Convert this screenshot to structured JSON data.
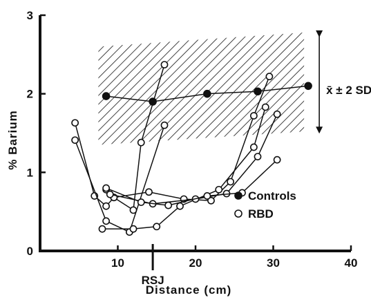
{
  "chart_data": {
    "type": "line",
    "xlabel": "Distance (cm)",
    "ylabel": "% Barium",
    "xlim": [
      0,
      40
    ],
    "ylim": [
      0,
      3
    ],
    "xticks": [
      "10",
      "20",
      "30",
      "40"
    ],
    "yticks": [
      "0",
      "1",
      "2",
      "3"
    ],
    "grid": false,
    "legend_placement": "bottom-right",
    "legend": [
      {
        "label": "Controls",
        "marker": "filled-circle"
      },
      {
        "label": "RBD",
        "marker": "open-circle"
      }
    ],
    "annotations": {
      "rsj_label": "RSJ",
      "rsj_x": 14.5,
      "band_label": "x̄ ± 2 SD"
    },
    "band": {
      "x_range": [
        7.5,
        34.5
      ],
      "lower_start": 1.35,
      "lower_end": 1.52,
      "upper_start": 2.6,
      "upper_end": 2.78,
      "arrow_x": 34.5
    },
    "series": [
      {
        "name": "Controls",
        "marker": "filled",
        "x": [
          8.5,
          14.5,
          21.5,
          28,
          34.5
        ],
        "y": [
          1.97,
          1.9,
          2.0,
          2.03,
          2.1
        ]
      },
      {
        "marker": "open",
        "x": [
          4.5,
          7,
          8.5,
          9.5,
          12,
          13,
          16
        ],
        "y": [
          1.63,
          0.7,
          0.57,
          0.68,
          0.52,
          1.38,
          2.37
        ]
      },
      {
        "marker": "open",
        "x": [
          4.5,
          8.5,
          11.5,
          16
        ],
        "y": [
          1.41,
          0.38,
          0.24,
          1.6
        ]
      },
      {
        "marker": "open",
        "x": [
          8.5,
          9.5,
          14,
          18.5,
          22,
          24.5,
          27.5,
          29.5
        ],
        "y": [
          0.78,
          0.68,
          0.75,
          0.66,
          0.64,
          0.88,
          1.72,
          2.22
        ]
      },
      {
        "marker": "open",
        "x": [
          8,
          12,
          15,
          18,
          23,
          27.5,
          29
        ],
        "y": [
          0.28,
          0.28,
          0.31,
          0.57,
          0.78,
          1.32,
          1.83
        ]
      },
      {
        "marker": "open",
        "x": [
          9,
          14.5,
          20,
          24,
          28,
          30.5
        ],
        "y": [
          0.72,
          0.6,
          0.66,
          0.73,
          1.2,
          1.74
        ]
      },
      {
        "marker": "open",
        "x": [
          8.5,
          13,
          16.5,
          21.5,
          26,
          30.5
        ],
        "y": [
          0.8,
          0.62,
          0.58,
          0.7,
          0.74,
          1.16
        ]
      }
    ]
  }
}
